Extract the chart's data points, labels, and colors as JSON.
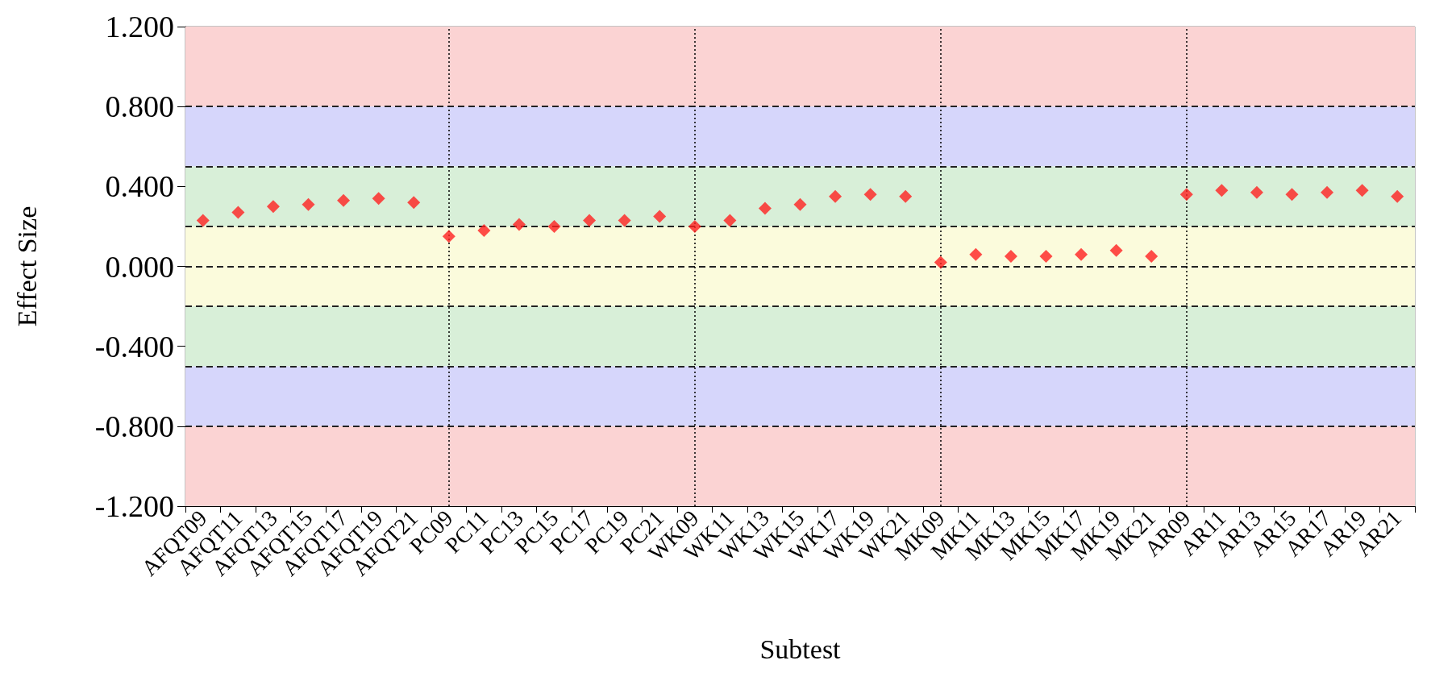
{
  "chart_data": {
    "type": "scatter",
    "xlabel": "Subtest",
    "ylabel": "Effect Size",
    "categories": [
      "AFQT09",
      "AFQT11",
      "AFQT13",
      "AFQT15",
      "AFQT17",
      "AFQT19",
      "AFQT21",
      "PC09",
      "PC11",
      "PC13",
      "PC15",
      "PC17",
      "PC19",
      "PC21",
      "WK09",
      "WK11",
      "WK13",
      "WK15",
      "WK17",
      "WK19",
      "WK21",
      "MK09",
      "MK11",
      "MK13",
      "MK15",
      "MK17",
      "MK19",
      "MK21",
      "AR09",
      "AR11",
      "AR13",
      "AR15",
      "AR17",
      "AR19",
      "AR21"
    ],
    "values": [
      0.23,
      0.27,
      0.3,
      0.31,
      0.33,
      0.34,
      0.32,
      0.15,
      0.18,
      0.21,
      0.2,
      0.23,
      0.23,
      0.25,
      0.2,
      0.23,
      0.29,
      0.31,
      0.35,
      0.36,
      0.35,
      0.02,
      0.06,
      0.05,
      0.05,
      0.06,
      0.08,
      0.05,
      0.36,
      0.38,
      0.37,
      0.36,
      0.37,
      0.38,
      0.35
    ],
    "color": "#ff2020",
    "marker": "diamond",
    "grid": false,
    "ylim": [
      -1.2,
      1.2
    ],
    "yticks": [
      {
        "value": -1.2,
        "label": "-1.200"
      },
      {
        "value": -0.8,
        "label": "-0.800"
      },
      {
        "value": -0.4,
        "label": "-0.400"
      },
      {
        "value": 0,
        "label": "0.000"
      },
      {
        "value": 0.4,
        "label": "0.400"
      },
      {
        "value": 0.8,
        "label": "0.800"
      },
      {
        "value": 1.2,
        "label": "1.200"
      }
    ],
    "bands": [
      {
        "axis": "y",
        "from": 0.8,
        "to": 1.2,
        "color": "#fbd3d3"
      },
      {
        "axis": "y",
        "from": 0.5,
        "to": 0.8,
        "color": "#d6d6fb"
      },
      {
        "axis": "y",
        "from": 0.2,
        "to": 0.5,
        "color": "#d8efd8"
      },
      {
        "axis": "y",
        "from": -0.2,
        "to": 0.2,
        "color": "#fbfbdc"
      },
      {
        "axis": "y",
        "from": -0.5,
        "to": -0.2,
        "color": "#d8efd8"
      },
      {
        "axis": "y",
        "from": -0.8,
        "to": -0.5,
        "color": "#d6d6fb"
      },
      {
        "axis": "y",
        "from": -1.2,
        "to": -0.8,
        "color": "#fbd3d3"
      }
    ],
    "ref_lines": [
      {
        "axis": "y",
        "value": 0.8,
        "color": "#222222",
        "line_style": "dashed"
      },
      {
        "axis": "y",
        "value": 0.5,
        "color": "#222222",
        "line_style": "dashed"
      },
      {
        "axis": "y",
        "value": 0.2,
        "color": "#222222",
        "line_style": "dashed"
      },
      {
        "axis": "y",
        "value": 0,
        "color": "#222222",
        "line_style": "dashed"
      },
      {
        "axis": "y",
        "value": -0.2,
        "color": "#222222",
        "line_style": "dashed"
      },
      {
        "axis": "y",
        "value": -0.5,
        "color": "#222222",
        "line_style": "dashed"
      },
      {
        "axis": "y",
        "value": -0.8,
        "color": "#222222",
        "line_style": "dashed"
      },
      {
        "axis": "x",
        "value": "PC09",
        "color": "#000000",
        "line_style": "dotted"
      },
      {
        "axis": "x",
        "value": "WK09",
        "color": "#000000",
        "line_style": "dotted"
      },
      {
        "axis": "x",
        "value": "MK09",
        "color": "#000000",
        "line_style": "dotted"
      },
      {
        "axis": "x",
        "value": "AR09",
        "color": "#000000",
        "line_style": "dotted"
      }
    ]
  }
}
